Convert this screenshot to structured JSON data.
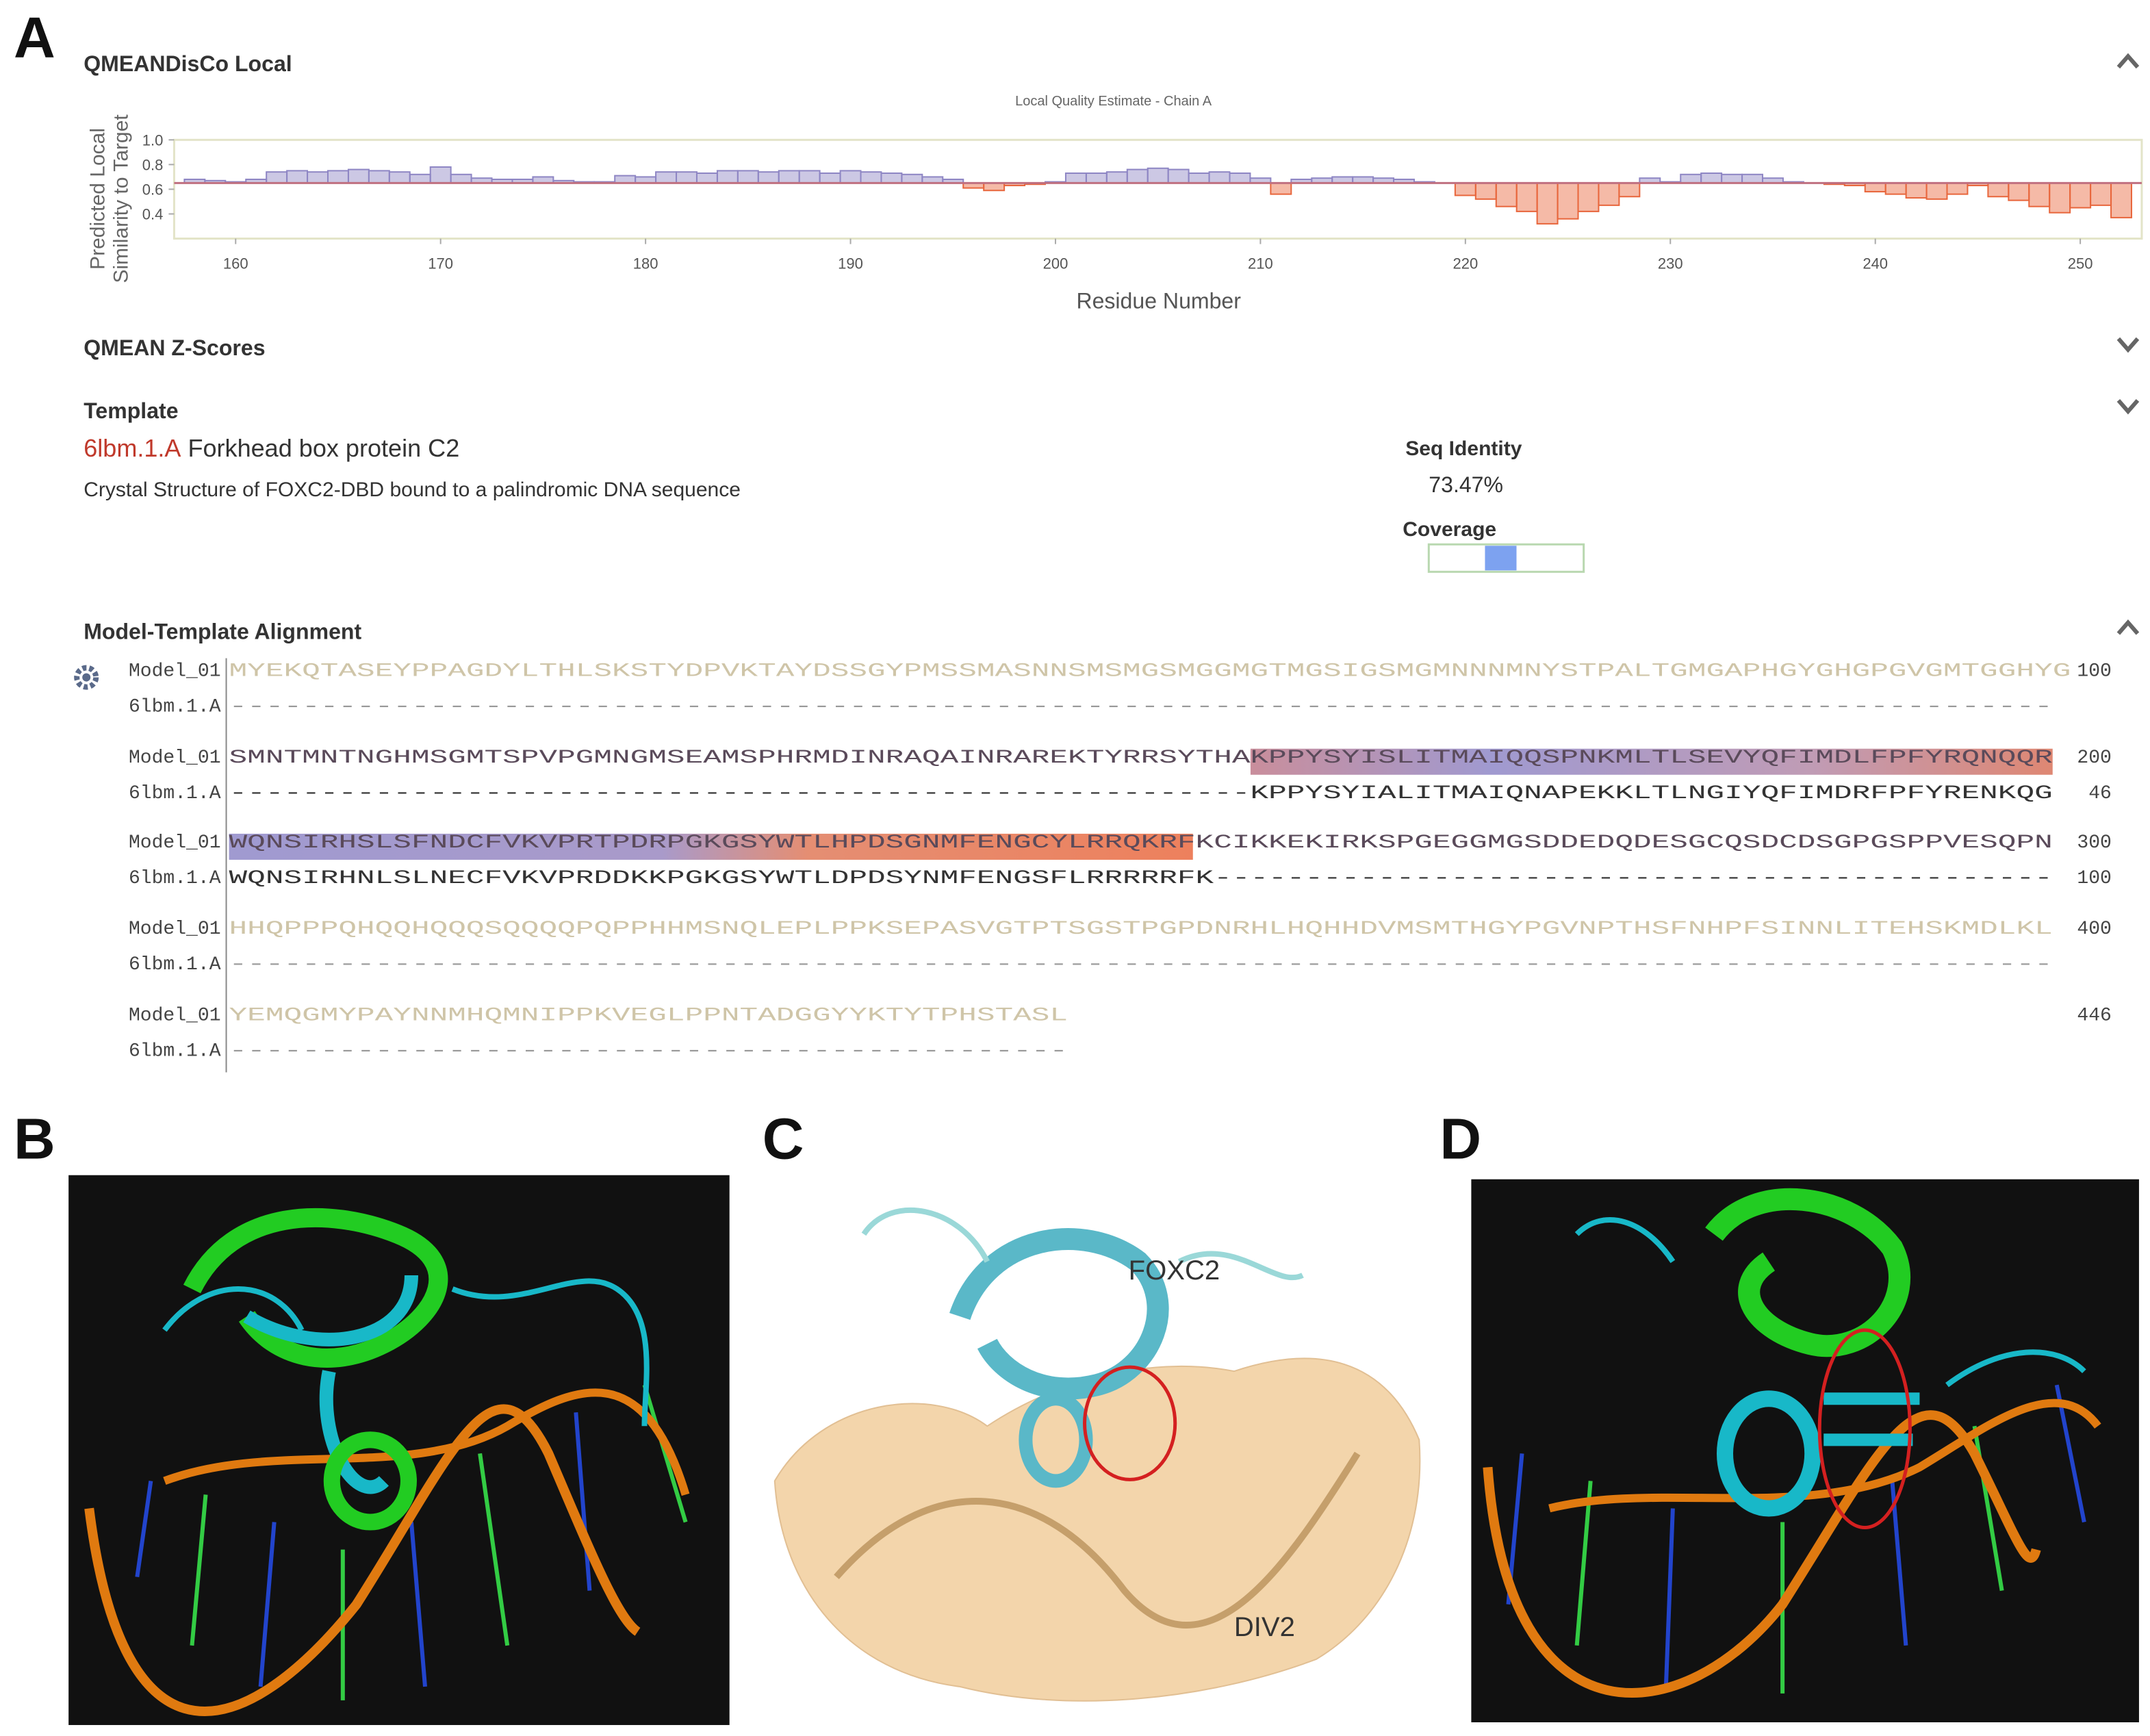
{
  "panel_labels": [
    "A",
    "B",
    "C",
    "D"
  ],
  "sections": {
    "qmean_disco": "QMEANDisCo Local",
    "zscores": "QMEAN Z-Scores",
    "template_heading": "Template",
    "alignment_heading": "Model-Template Alignment"
  },
  "chart_data": {
    "type": "bar",
    "title": "Local Quality Estimate - Chain A",
    "ylabel": [
      "Predicted Local",
      "Similarity to Target"
    ],
    "xlabel": "Residue Number",
    "x": [
      158,
      159,
      160,
      161,
      162,
      163,
      164,
      165,
      166,
      167,
      168,
      169,
      170,
      171,
      172,
      173,
      174,
      175,
      176,
      177,
      178,
      179,
      180,
      181,
      182,
      183,
      184,
      185,
      186,
      187,
      188,
      189,
      190,
      191,
      192,
      193,
      194,
      195,
      196,
      197,
      198,
      199,
      200,
      201,
      202,
      203,
      204,
      205,
      206,
      207,
      208,
      209,
      210,
      211,
      212,
      213,
      214,
      215,
      216,
      217,
      218,
      219,
      220,
      221,
      222,
      223,
      224,
      225,
      226,
      227,
      228,
      229,
      230,
      231,
      232,
      233,
      234,
      235,
      236,
      237,
      238,
      239,
      240,
      241,
      242,
      243,
      244,
      245,
      246,
      247,
      248,
      249,
      250,
      251,
      252
    ],
    "values": [
      0.68,
      0.67,
      0.66,
      0.68,
      0.74,
      0.75,
      0.74,
      0.75,
      0.76,
      0.75,
      0.74,
      0.72,
      0.78,
      0.72,
      0.69,
      0.68,
      0.68,
      0.7,
      0.67,
      0.66,
      0.66,
      0.71,
      0.7,
      0.74,
      0.74,
      0.73,
      0.75,
      0.75,
      0.74,
      0.75,
      0.75,
      0.73,
      0.75,
      0.74,
      0.73,
      0.72,
      0.7,
      0.68,
      0.61,
      0.59,
      0.63,
      0.64,
      0.66,
      0.73,
      0.73,
      0.74,
      0.76,
      0.77,
      0.76,
      0.73,
      0.74,
      0.73,
      0.69,
      0.56,
      0.68,
      0.69,
      0.7,
      0.7,
      0.69,
      0.68,
      0.66,
      0.65,
      0.55,
      0.52,
      0.46,
      0.42,
      0.32,
      0.36,
      0.42,
      0.47,
      0.54,
      0.69,
      0.66,
      0.72,
      0.73,
      0.72,
      0.72,
      0.69,
      0.66,
      0.65,
      0.64,
      0.63,
      0.58,
      0.56,
      0.53,
      0.52,
      0.56,
      0.63,
      0.54,
      0.51,
      0.46,
      0.41,
      0.45,
      0.47,
      0.37
    ],
    "baseline": 0.65,
    "color_above": "#8e86c4",
    "color_below": "#e8663c",
    "xlim": [
      157,
      253
    ],
    "xticks": [
      160,
      170,
      180,
      190,
      200,
      210,
      220,
      230,
      240,
      250
    ],
    "ylim": [
      0.2,
      1.0
    ],
    "yticks": [
      {
        "value": 0.4,
        "label": "0.4"
      },
      {
        "value": 0.6,
        "label": "0.6"
      },
      {
        "value": 0.8,
        "label": "0.8"
      },
      {
        "value": 1,
        "label": "1.0"
      }
    ]
  },
  "template": {
    "id": "6lbm.1.A",
    "name": "Forkhead box protein C2",
    "description": "Crystal Structure of FOXC2-DBD bound to a palindromic DNA sequence",
    "seq_identity_label": "Seq Identity",
    "seq_identity": "73.47%",
    "coverage_label": "Coverage"
  },
  "alignment": {
    "blocks": [
      {
        "model_name": "Model_01",
        "model_seq": "MYEKQTASEYPPAGDYLTHLSKSTYDPVKTAYDSSGYPMSSMASNNSMSMGSMGGMGTMGSIGSMGMNNNMNYSTPALTGMGAPHGYGHGPGVGMTGGHYG",
        "model_end": 100,
        "template_name": "6lbm.1.A",
        "template_seq": "----------------------------------------------------------------------------------------------------"
      },
      {
        "model_name": "Model_01",
        "model_seq": "SMNTMNTNGHMSGMTSPVPGMNGMSEAMSPHRMDINRAQAINRAREKTYRRSYTHAKPPYSYISLITMAIQQSPNKMLTLSEVYQFIMDLFPFYRQNQQR",
        "model_end": 200,
        "template_name": "6lbm.1.A",
        "template_seq": "--------------------------------------------------------KPPYSYIALITMAIQNAPEKKLTLNGIYQFIMDRFPFYRENKQG",
        "template_end": 46
      },
      {
        "model_name": "Model_01",
        "model_seq": "WQNSIRHSLSFNDCFVKVPRTPDRPGKGSYWTLHPDSGNMFENGCYLRRQKRFKCIKKEKIRKSPGEGGMGSDDEDQDESGCQSDCDSGPGSPPVESQPN",
        "model_end": 300,
        "template_name": "6lbm.1.A",
        "template_seq": "WQNSIRHNLSLNECFVKVPRDDKKPGKGSYWTLDPDSYNMFENGSFLRRRRRFK----------------------------------------------",
        "template_end": 100
      },
      {
        "model_name": "Model_01",
        "model_seq": "HHQPPPQHQQHQQQSQQQQPQPPHHMSNQLEPLPPKSEPASVGTPTSGSTPGPDNRHLHQHHDVMSMTHGYPGVNPTHSFNHPFSINNLITEHSKMDLKL",
        "model_end": 400,
        "template_name": "6lbm.1.A",
        "template_seq": "----------------------------------------------------------------------------------------------------"
      },
      {
        "model_name": "Model_01",
        "model_seq": "YEMQGMYPAYNNMHQMNIPPKVEGLPPNTADGGYYKTYTPHSTASL",
        "model_end": 446,
        "template_name": "6lbm.1.A",
        "template_seq": "----------------------------------------------"
      }
    ]
  },
  "panel_c_labels": [
    "FOXC2",
    "DIV2"
  ]
}
